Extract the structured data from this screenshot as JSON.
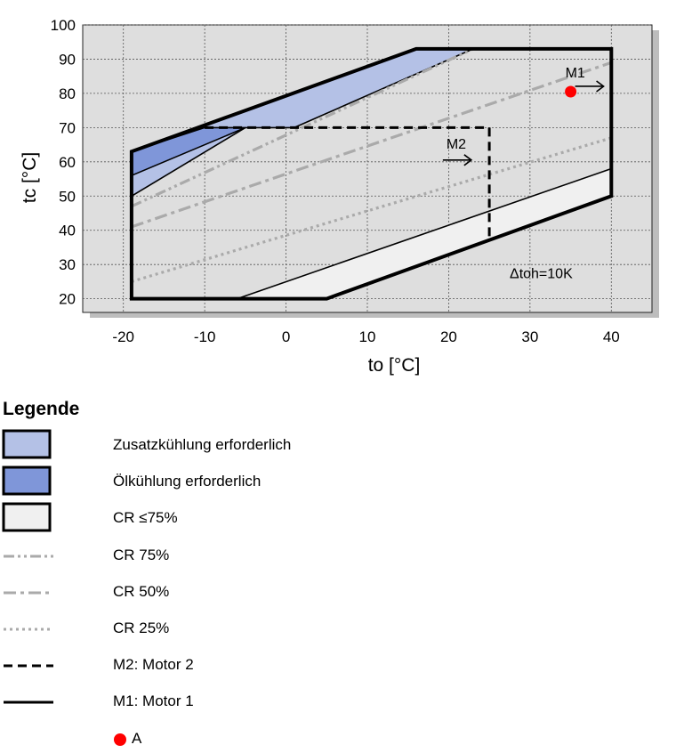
{
  "chart_data": {
    "type": "area",
    "xlabel": "to [°C]",
    "ylabel": "tc [°C]",
    "xlim": [
      -25,
      45
    ],
    "ylim": [
      16,
      100
    ],
    "xticks": [
      "-20",
      "-10",
      "0",
      "10",
      "20",
      "30",
      "40"
    ],
    "yticks": [
      "20",
      "30",
      "40",
      "50",
      "60",
      "70",
      "80",
      "90",
      "100"
    ],
    "grid": true,
    "annotation": "Δtoh=10K",
    "envelope_m1": {
      "name": "M1: Motor 1",
      "polygon": [
        [
          -19,
          20
        ],
        [
          -19,
          63
        ],
        [
          16,
          93
        ],
        [
          40,
          93
        ],
        [
          40,
          50
        ],
        [
          5,
          20
        ]
      ]
    },
    "envelope_m2": {
      "name": "M2: Motor 2",
      "polyline": [
        [
          -10,
          70
        ],
        [
          25,
          70
        ],
        [
          25,
          37
        ]
      ]
    },
    "regions": [
      {
        "name": "Zusatzkühlung erforderlich",
        "color": "#b4c1e6",
        "polygon": [
          [
            -19,
            50
          ],
          [
            -19,
            63
          ],
          [
            16,
            93
          ],
          [
            23,
            93
          ],
          [
            1,
            70
          ],
          [
            -5,
            70
          ]
        ]
      },
      {
        "name": "Ölkühlung erforderlich",
        "color": "#7f96d9",
        "polygon": [
          [
            -19,
            56
          ],
          [
            -19,
            63
          ],
          [
            -10,
            70
          ],
          [
            -5,
            70
          ]
        ]
      },
      {
        "name": "CR ≤75%",
        "color": "#f0f0f0",
        "polygon": [
          [
            -6,
            20
          ],
          [
            5,
            20
          ],
          [
            40,
            50
          ],
          [
            40,
            58
          ]
        ]
      }
    ],
    "series": [
      {
        "name": "CR 75%",
        "style": "dash-dot-dot",
        "color": "#aaaaaa",
        "x": [
          -19,
          23
        ],
        "y": [
          47,
          93
        ]
      },
      {
        "name": "CR 50%",
        "style": "dash-dot",
        "color": "#aaaaaa",
        "x": [
          -19,
          40
        ],
        "y": [
          41,
          89
        ]
      },
      {
        "name": "CR 25%",
        "style": "dotted",
        "color": "#aaaaaa",
        "x": [
          -19,
          40
        ],
        "y": [
          25,
          67
        ]
      }
    ],
    "points": [
      {
        "name": "A",
        "label": "M1",
        "x": 35,
        "y": 80.5,
        "color": "#ff0000"
      }
    ],
    "m2_label": "M2",
    "m2_arrow": {
      "x": 23,
      "y": 60
    }
  },
  "legend": {
    "title": "Legende",
    "items": [
      {
        "label": "Zusatzkühlung erforderlich",
        "kind": "box",
        "color": "#b4c1e6"
      },
      {
        "label": "Ölkühlung erforderlich",
        "kind": "box",
        "color": "#7f96d9"
      },
      {
        "label": "CR ≤75%",
        "kind": "box",
        "color": "#f0f0f0"
      },
      {
        "label": "CR 75%",
        "kind": "dash-dot-dot",
        "color": "#aaaaaa"
      },
      {
        "label": "CR 50%",
        "kind": "dash-dot",
        "color": "#aaaaaa"
      },
      {
        "label": "CR 25%",
        "kind": "dotted",
        "color": "#aaaaaa"
      },
      {
        "label": "M2: Motor 2",
        "kind": "dashed",
        "color": "#000000"
      },
      {
        "label": "M1: Motor 1",
        "kind": "solid",
        "color": "#000000"
      },
      {
        "label": "A",
        "kind": "dot",
        "color": "#ff0000"
      }
    ]
  }
}
